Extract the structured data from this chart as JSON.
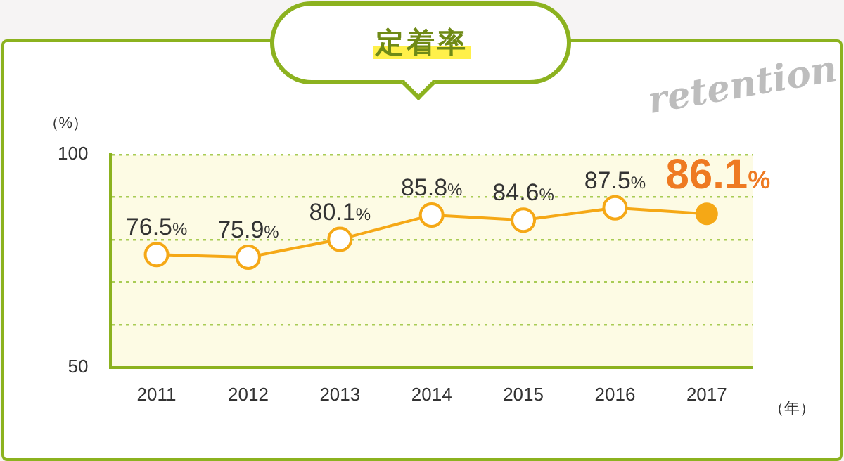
{
  "chart_data": {
    "type": "line",
    "title": "定着率",
    "xlabel": "（年）",
    "ylabel": "（%）",
    "annotations": [
      "retention"
    ],
    "categories": [
      "2011",
      "2012",
      "2013",
      "2014",
      "2015",
      "2016",
      "2017"
    ],
    "series": [
      {
        "color": "#f5a816",
        "values": [
          76.5,
          75.9,
          80.1,
          85.8,
          84.6,
          87.5,
          86.1
        ],
        "value_labels": [
          "76.5%",
          "75.9%",
          "80.1%",
          "85.8%",
          "84.6%",
          "87.5%",
          "86.1%"
        ]
      }
    ],
    "ylim": [
      50,
      100
    ],
    "yticks": [
      50,
      {
        "value": 60,
        "label": null
      },
      {
        "value": 70,
        "label": null
      },
      {
        "value": 80,
        "label": null
      },
      {
        "value": 90,
        "label": null
      },
      100
    ],
    "grid": "y",
    "marker": "circle",
    "line_style": "solid",
    "legend": false
  }
}
